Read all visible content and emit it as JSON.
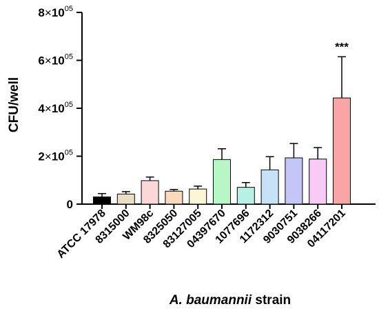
{
  "chart_data": {
    "type": "bar",
    "title": "",
    "ylabel": "CFU/well",
    "xlabel_parts": [
      {
        "text": "A. baumannii",
        "italic": true
      },
      {
        "text": " strain",
        "italic": false
      }
    ],
    "ylim": [
      0,
      800000
    ],
    "yticks": [
      {
        "value": 0,
        "label": "0"
      },
      {
        "value": 200000,
        "mantissa": "2",
        "times": "×",
        "exp_base": "10",
        "exp": "05"
      },
      {
        "value": 400000,
        "mantissa": "4",
        "times": "×",
        "exp_base": "10",
        "exp": "05"
      },
      {
        "value": 600000,
        "mantissa": "6",
        "times": "×",
        "exp_base": "10",
        "exp": "05"
      },
      {
        "value": 800000,
        "mantissa": "8",
        "times": "×",
        "exp_base": "10",
        "exp": "05"
      }
    ],
    "categories": [
      "ATCC 17978",
      "8315000",
      "WM98c",
      "8325050",
      "83127005",
      "04397670",
      "1077696",
      "1172312",
      "9030751",
      "9038266",
      "04117201"
    ],
    "values": [
      30000,
      42000,
      98000,
      54000,
      63000,
      186000,
      70000,
      143000,
      193000,
      188000,
      443000
    ],
    "errors": [
      14000,
      10000,
      15000,
      7000,
      12000,
      45000,
      20000,
      55000,
      60000,
      48000,
      172000
    ],
    "colors": [
      "#000000",
      "#e8dfc4",
      "#fbd7d7",
      "#fbd9bd",
      "#fbf7d5",
      "#b7f7c6",
      "#b9f0e6",
      "#c7e1f7",
      "#c3c6f7",
      "#f7cbf5",
      "#f9a5a5"
    ],
    "annotations": [
      {
        "category_index": 10,
        "text": "***"
      }
    ],
    "grid": false,
    "legend": "none"
  }
}
